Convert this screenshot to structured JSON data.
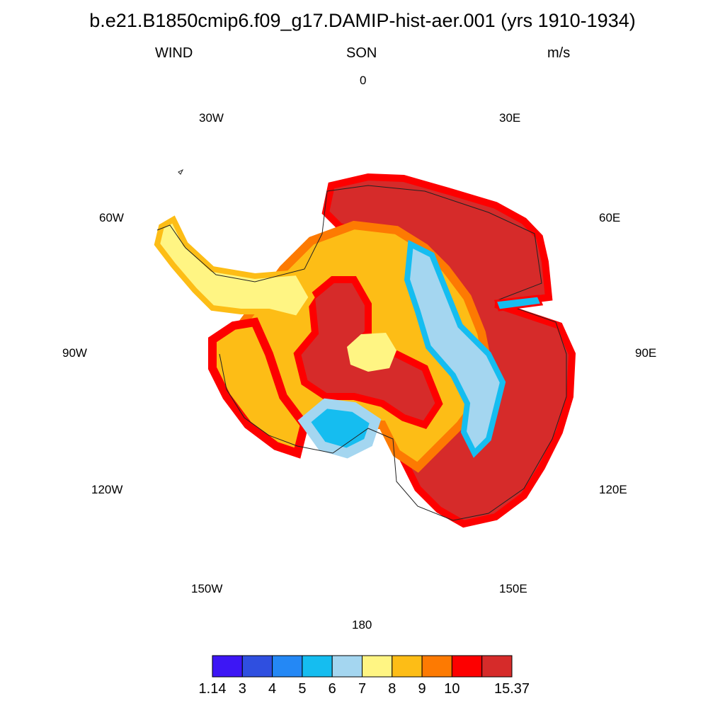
{
  "title": "b.e21.B1850cmip6.f09_g17.DAMIP-hist-aer.001 (yrs 1910-1934)",
  "left_label": "WIND",
  "center_label": "SON",
  "right_label": "m/s",
  "longitudes": {
    "0": "0",
    "30E": "30E",
    "60E": "60E",
    "90E": "90E",
    "120E": "120E",
    "150E": "150E",
    "180": "180",
    "150W": "150W",
    "120W": "120W",
    "90W": "90W",
    "60W": "60W",
    "30W": "30W"
  },
  "colorbar": {
    "colors": [
      "#3d16f5",
      "#2f4fe0",
      "#2488f5",
      "#15bdf0",
      "#a4d6f0",
      "#fff583",
      "#fdbd16",
      "#fd7a02",
      "#fd0000",
      "#d62b2a"
    ],
    "labels": [
      "1.14",
      "3",
      "4",
      "5",
      "6",
      "7",
      "8",
      "9",
      "10",
      "15.37"
    ]
  }
}
